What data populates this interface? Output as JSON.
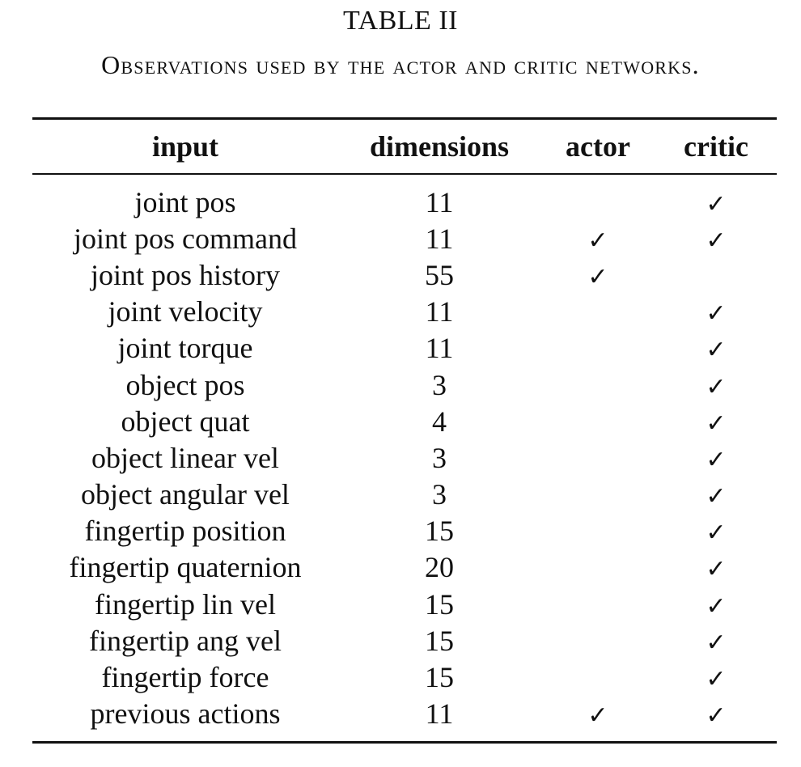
{
  "table_label": "TABLE II",
  "caption": "Observations used by the actor and critic networks.",
  "columns": [
    "input",
    "dimensions",
    "actor",
    "critic"
  ],
  "check_symbol": "✓",
  "rows": [
    {
      "input": "joint pos",
      "dimensions": "11",
      "actor": "",
      "critic": "✓"
    },
    {
      "input": "joint pos command",
      "dimensions": "11",
      "actor": "✓",
      "critic": "✓"
    },
    {
      "input": "joint pos history",
      "dimensions": "55",
      "actor": "✓",
      "critic": ""
    },
    {
      "input": "joint velocity",
      "dimensions": "11",
      "actor": "",
      "critic": "✓"
    },
    {
      "input": "joint torque",
      "dimensions": "11",
      "actor": "",
      "critic": "✓"
    },
    {
      "input": "object pos",
      "dimensions": "3",
      "actor": "",
      "critic": "✓"
    },
    {
      "input": "object quat",
      "dimensions": "4",
      "actor": "",
      "critic": "✓"
    },
    {
      "input": "object linear vel",
      "dimensions": "3",
      "actor": "",
      "critic": "✓"
    },
    {
      "input": "object angular vel",
      "dimensions": "3",
      "actor": "",
      "critic": "✓"
    },
    {
      "input": "fingertip position",
      "dimensions": "15",
      "actor": "",
      "critic": "✓"
    },
    {
      "input": "fingertip quaternion",
      "dimensions": "20",
      "actor": "",
      "critic": "✓"
    },
    {
      "input": "fingertip lin vel",
      "dimensions": "15",
      "actor": "",
      "critic": "✓"
    },
    {
      "input": "fingertip ang vel",
      "dimensions": "15",
      "actor": "",
      "critic": "✓"
    },
    {
      "input": "fingertip force",
      "dimensions": "15",
      "actor": "",
      "critic": "✓"
    },
    {
      "input": "previous actions",
      "dimensions": "11",
      "actor": "✓",
      "critic": "✓"
    }
  ]
}
